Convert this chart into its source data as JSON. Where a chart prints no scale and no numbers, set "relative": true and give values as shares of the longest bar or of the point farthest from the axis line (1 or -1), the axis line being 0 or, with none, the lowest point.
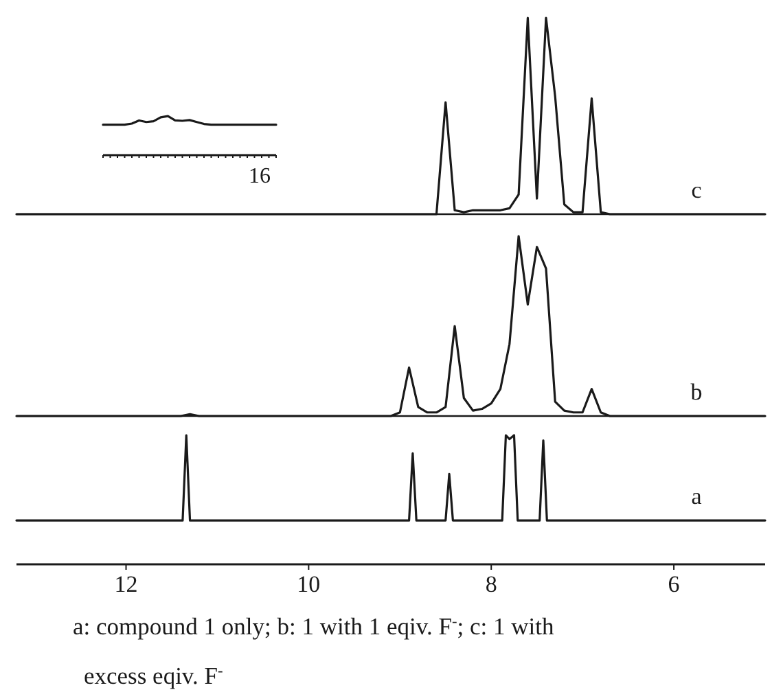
{
  "chart_data": [
    {
      "type": "line",
      "relative": true,
      "categories": [
        null,
        null,
        null,
        null,
        null,
        null,
        null,
        null,
        null,
        null,
        null,
        null,
        null,
        null,
        null,
        null,
        null,
        null,
        null,
        null,
        null,
        null,
        null,
        null,
        null
      ],
      "color": "#1a1a1a",
      "values": [
        0.78,
        0.78,
        0.78,
        0.78,
        0.81,
        0.89,
        0.85,
        0.87,
        0.97,
        1,
        0.89,
        0.88,
        0.9,
        0.85,
        0.8,
        0.78,
        0.78,
        0.78,
        0.78,
        0.78,
        0.78,
        0.78,
        0.78,
        0.78,
        0.78
      ],
      "annotations": [
        "16"
      ]
    },
    {
      "type": "line",
      "relative": true,
      "categories": [
        null,
        null,
        null,
        null,
        null,
        null,
        null,
        null,
        null,
        null,
        null,
        null,
        null,
        null,
        null,
        null,
        null,
        null,
        null,
        null,
        null,
        null,
        null,
        null,
        null,
        null,
        null,
        null,
        null,
        null,
        null,
        null,
        null,
        null,
        null,
        null,
        null,
        null,
        null,
        null,
        null,
        null,
        null,
        null,
        null,
        null,
        null,
        null,
        null,
        null,
        null,
        null,
        null,
        null,
        null,
        null,
        null,
        null,
        null,
        null,
        null,
        null,
        null,
        null,
        null,
        null,
        null,
        null,
        null,
        null,
        null,
        null,
        null,
        null,
        null,
        null,
        null,
        null,
        null,
        null,
        null,
        null,
        null
      ],
      "color": "#1a1a1a",
      "values": [
        0,
        0,
        0,
        0,
        0,
        0,
        0,
        0,
        0,
        0,
        0,
        0,
        0,
        0,
        0,
        0,
        0,
        0,
        0,
        0,
        0,
        0,
        0,
        0,
        0,
        0,
        0,
        0,
        0,
        0,
        0,
        0,
        0,
        0,
        0,
        0,
        0,
        0,
        0,
        0,
        0,
        0,
        0,
        0,
        0,
        0,
        0,
        0.57,
        0.02,
        0.01,
        0.02,
        0.02,
        0.02,
        0.02,
        0.03,
        0.1,
        1,
        0.08,
        1,
        0.6,
        0.05,
        0.01,
        0.01,
        0.59,
        0.01,
        0,
        0,
        0,
        0,
        0,
        0,
        0,
        0,
        0,
        0,
        0,
        0,
        0,
        0,
        0,
        0,
        0,
        0
      ],
      "annotations": [
        "c"
      ]
    },
    {
      "type": "line",
      "relative": true,
      "categories": [
        null,
        null,
        null,
        null,
        null,
        null,
        null,
        null,
        null,
        null,
        null,
        null,
        null,
        null,
        null,
        null,
        null,
        null,
        null,
        null,
        null,
        null,
        null,
        null,
        null,
        null,
        null,
        null,
        null,
        null,
        null,
        null,
        null,
        null,
        null,
        null,
        null,
        null,
        null,
        null,
        null,
        null,
        null,
        null,
        null,
        null,
        null,
        null,
        null,
        null,
        null,
        null,
        null,
        null,
        null,
        null,
        null,
        null,
        null,
        null,
        null,
        null,
        null,
        null,
        null,
        null,
        null,
        null,
        null,
        null,
        null,
        null,
        null,
        null,
        null,
        null,
        null,
        null,
        null,
        null,
        null,
        null,
        null
      ],
      "color": "#1a1a1a",
      "values": [
        0,
        0,
        0,
        0,
        0,
        0,
        0,
        0,
        0,
        0,
        0,
        0,
        0,
        0,
        0,
        0,
        0,
        0,
        0,
        0.01,
        0,
        0,
        0,
        0,
        0,
        0,
        0,
        0,
        0,
        0,
        0,
        0,
        0,
        0,
        0,
        0,
        0,
        0,
        0,
        0,
        0,
        0,
        0.02,
        0.27,
        0.05,
        0.02,
        0.02,
        0.05,
        0.5,
        0.1,
        0.03,
        0.04,
        0.07,
        0.15,
        0.4,
        1,
        0.62,
        0.94,
        0.82,
        0.08,
        0.03,
        0.02,
        0.02,
        0.15,
        0.02,
        0,
        0,
        0,
        0,
        0,
        0,
        0,
        0,
        0,
        0,
        0,
        0,
        0,
        0,
        0,
        0,
        0,
        0
      ],
      "annotations": [
        "b"
      ]
    },
    {
      "type": "line",
      "relative": true,
      "xlim": [
        13.2,
        5.0
      ],
      "xticks": [
        12,
        10,
        8,
        6
      ],
      "color": "#1a1a1a",
      "x": [
        13.2,
        11.38,
        11.34,
        11.3,
        8.9,
        8.86,
        8.82,
        8.5,
        8.46,
        8.42,
        7.88,
        7.84,
        7.8,
        7.75,
        7.71,
        7.47,
        7.43,
        7.39,
        5.0
      ],
      "values": [
        0.34,
        0.34,
        1,
        0.34,
        0.34,
        0.86,
        0.34,
        0.34,
        0.7,
        0.34,
        0.34,
        1,
        0.97,
        1,
        0.34,
        0.34,
        0.96,
        0.34,
        0.34
      ],
      "annotations": [
        "a",
        "a: compound 1 only; b: 1 with 1 eqiv. F$^{-}$; c: 1 with excess eqiv. F$^{-}$"
      ]
    }
  ]
}
